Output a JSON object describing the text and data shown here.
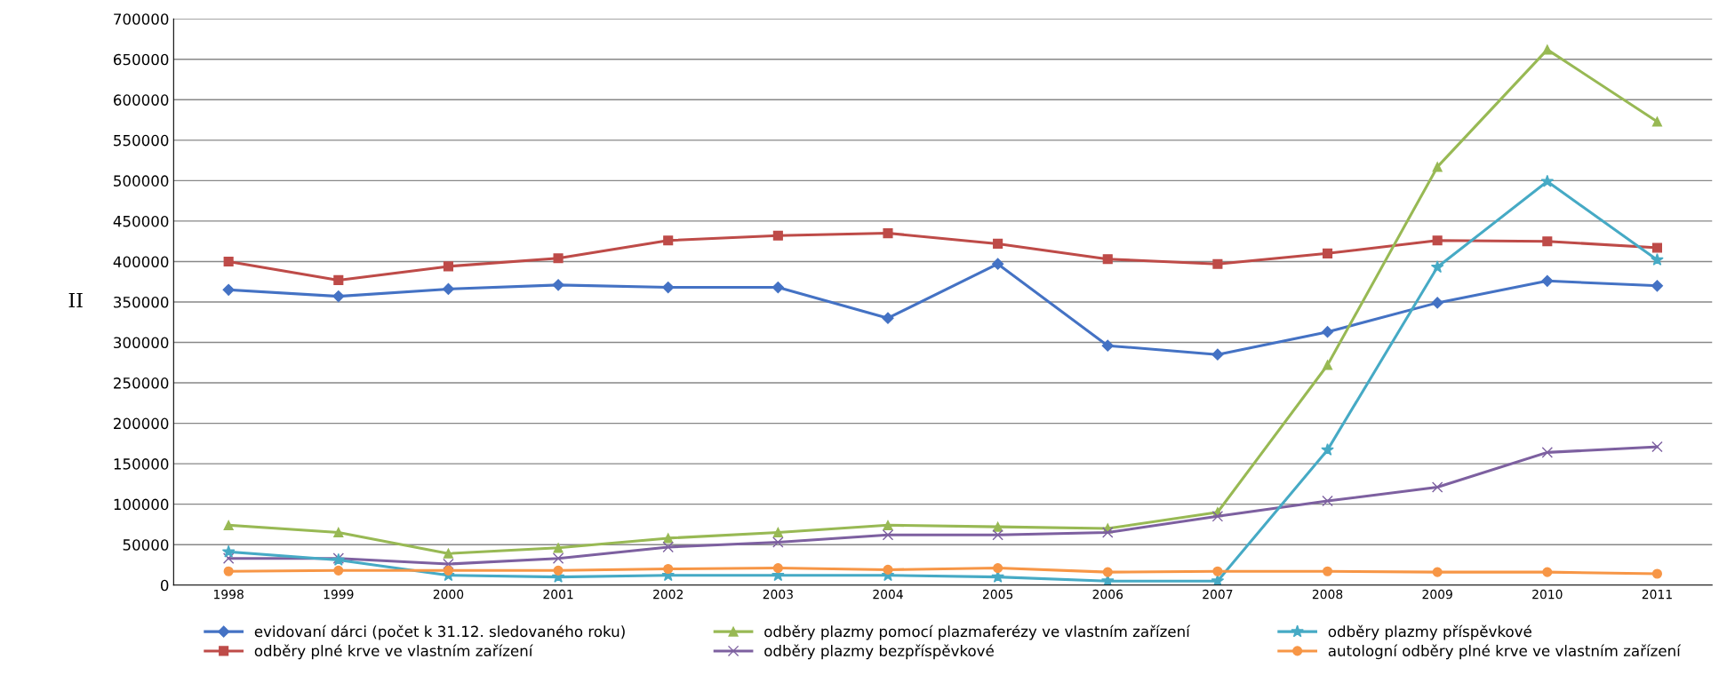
{
  "chart_data": {
    "type": "line",
    "ylabel": "II",
    "categories": [
      "1998",
      "1999",
      "2000",
      "2001",
      "2002",
      "2003",
      "2004",
      "2005",
      "2006",
      "2007",
      "2008",
      "2009",
      "2010",
      "2011"
    ],
    "ylim": [
      0,
      700000
    ],
    "yticks": [
      0,
      50000,
      100000,
      150000,
      200000,
      250000,
      300000,
      350000,
      400000,
      450000,
      500000,
      550000,
      600000,
      650000,
      700000
    ],
    "grid": "y",
    "legend": "bottom",
    "series": [
      {
        "name": "evidovaní dárci (počet k 31.12. sledovaného roku)",
        "color": "#4472c4",
        "marker": "diamond",
        "values": [
          365000,
          357000,
          366000,
          371000,
          368000,
          368000,
          330000,
          397000,
          296000,
          285000,
          313000,
          349000,
          376000,
          370000
        ]
      },
      {
        "name": "odběry plné krve ve vlastním zařízení",
        "color": "#be4b48",
        "marker": "square",
        "values": [
          400000,
          377000,
          394000,
          404000,
          426000,
          432000,
          435000,
          422000,
          403000,
          397000,
          410000,
          426000,
          425000,
          417000
        ]
      },
      {
        "name": "odběry plazmy pomocí plazmaferézy ve vlastním zařízení",
        "color": "#98b954",
        "marker": "triangle",
        "values": [
          74000,
          65000,
          39000,
          46000,
          58000,
          65000,
          74000,
          72000,
          70000,
          90000,
          272000,
          517000,
          662000,
          573000
        ]
      },
      {
        "name": "odběry plazmy bezpříspěvkové",
        "color": "#7d60a0",
        "marker": "cross",
        "values": [
          33000,
          33000,
          26000,
          33000,
          47000,
          53000,
          62000,
          62000,
          65000,
          85000,
          104000,
          121000,
          164000,
          171000
        ]
      },
      {
        "name": "odběry plazmy příspěvkové",
        "color": "#46aac5",
        "marker": "star",
        "values": [
          41000,
          31000,
          12000,
          10000,
          12000,
          12000,
          12000,
          10000,
          5000,
          5000,
          167000,
          393000,
          499000,
          402000
        ]
      },
      {
        "name": "autologní odběry plné krve ve vlastním zařízení",
        "color": "#f79646",
        "marker": "circle",
        "values": [
          17000,
          18000,
          18000,
          18000,
          20000,
          21000,
          19000,
          21000,
          16000,
          17000,
          17000,
          16000,
          16000,
          14000
        ]
      }
    ]
  }
}
